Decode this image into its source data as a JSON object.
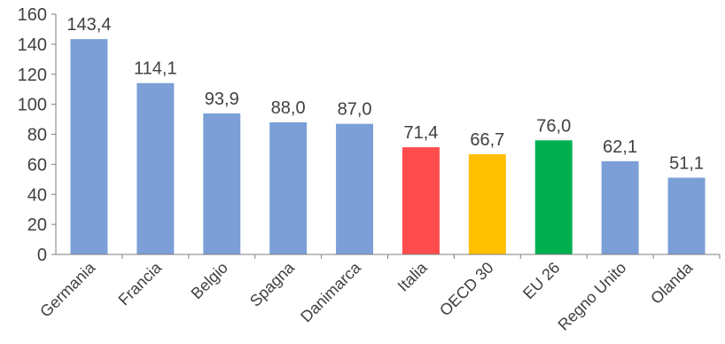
{
  "chart_data": {
    "type": "bar",
    "title": "",
    "xlabel": "",
    "ylabel": "",
    "ylim": [
      0,
      160
    ],
    "yticks": [
      "0",
      "20",
      "40",
      "60",
      "80",
      "100",
      "120",
      "140",
      "160"
    ],
    "grid": false,
    "categories": [
      "Germania",
      "Francia",
      "Belgio",
      "Spagna",
      "Danimarca",
      "Italia",
      "OECD 30",
      "EU 26",
      "Regno Unito",
      "Olanda"
    ],
    "values": [
      143.4,
      114.1,
      93.9,
      88.0,
      87.0,
      71.4,
      66.7,
      76.0,
      62.1,
      51.1
    ],
    "data_labels": [
      "143,4",
      "114,1",
      "93,9",
      "88,0",
      "87,0",
      "71,4",
      "66,7",
      "76,0",
      "62,1",
      "51,1"
    ],
    "colors": [
      "#7b9fd6",
      "#7b9fd6",
      "#7b9fd6",
      "#7b9fd6",
      "#7b9fd6",
      "#ff4d4d",
      "#ffc000",
      "#00b050",
      "#7b9fd6",
      "#7b9fd6"
    ],
    "axis_color": "#7f7f7f"
  }
}
